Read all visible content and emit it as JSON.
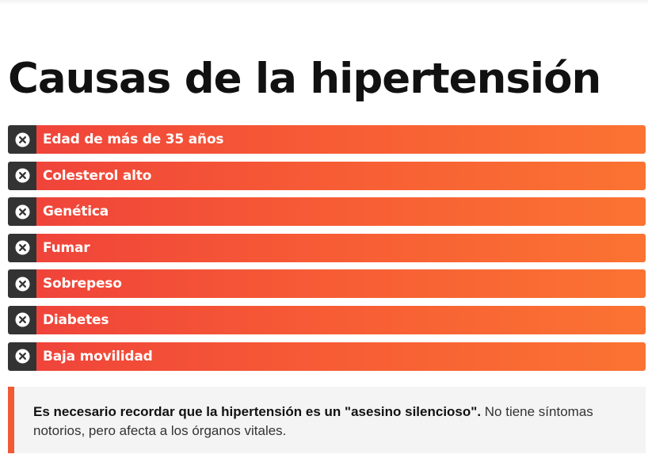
{
  "page": {
    "title": "Causas de la hipertensión"
  },
  "causes": {
    "icon": "x-circle-icon",
    "items": [
      {
        "label": "Edad de más de 35 años"
      },
      {
        "label": "Colesterol alto"
      },
      {
        "label": "Genética"
      },
      {
        "label": "Fumar"
      },
      {
        "label": "Sobrepeso"
      },
      {
        "label": "Diabetes"
      },
      {
        "label": "Baja movilidad"
      }
    ]
  },
  "note": {
    "bold_text": "Es necesario recordar que la hipertensión es un \"asesino silencioso\".",
    "text": " No tiene síntomas notorios, pero afecta a los órganos vitales."
  },
  "colors": {
    "accent": "#f05a35",
    "bar_start": "#f0443a",
    "bar_end": "#fb7332",
    "icon_box": "#333333",
    "note_bg": "#f4f4f4"
  }
}
